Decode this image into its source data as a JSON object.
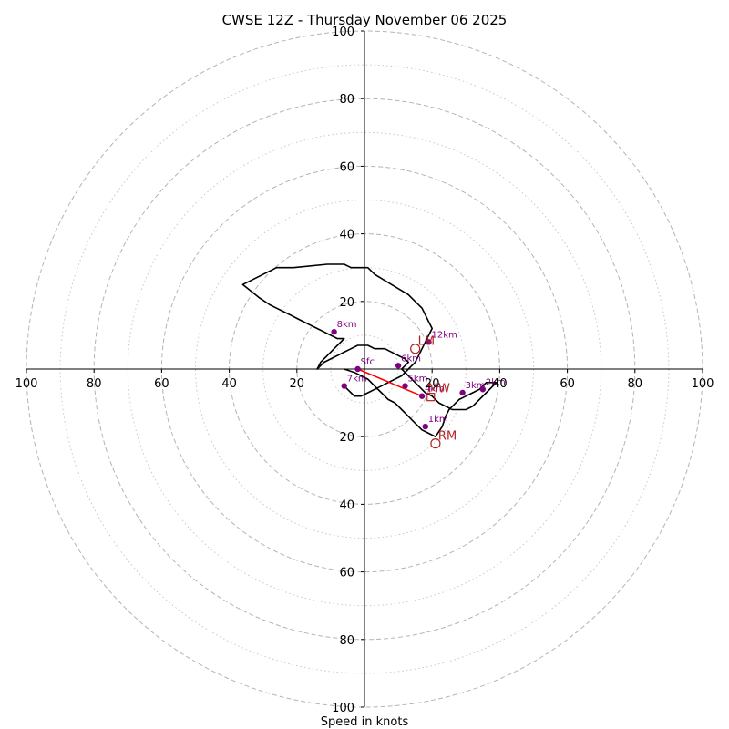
{
  "chart_data": {
    "type": "line",
    "title": "CWSE 12Z - Thursday November 06 2025",
    "xlabel": "Speed in knots",
    "ylabel": "",
    "xlim": [
      -100,
      100
    ],
    "ylim": [
      -100,
      100
    ],
    "rings_dashed": [
      20,
      40,
      60,
      80,
      100
    ],
    "rings_dotted": [
      10,
      30,
      50,
      70,
      90
    ],
    "tick_labels_x": [
      "100",
      "80",
      "60",
      "40",
      "20",
      "20",
      "40",
      "60",
      "80",
      "100"
    ],
    "tick_labels_y": [
      "100",
      "80",
      "60",
      "40",
      "20",
      "20",
      "40",
      "60",
      "80",
      "100"
    ],
    "grid": true,
    "hodograph": {
      "u": [
        -6,
        -3,
        -1,
        1,
        3,
        5,
        7,
        9,
        11,
        13,
        15,
        17,
        19,
        21,
        23,
        24,
        25,
        26,
        27,
        28,
        30,
        32,
        34,
        35,
        36,
        37,
        38,
        39,
        38,
        36,
        34,
        32,
        30,
        28,
        26,
        24,
        22,
        21,
        20,
        18,
        17,
        16,
        15,
        14,
        13,
        12,
        11,
        12,
        13,
        12,
        10,
        8,
        6,
        3,
        1,
        0,
        -2,
        -4,
        -6,
        -8,
        -10,
        -12,
        -14,
        -13,
        -11,
        -9,
        -8,
        -7,
        -6,
        -8,
        -10,
        -12,
        -14,
        -16,
        -18,
        -20,
        -22,
        -24,
        -26,
        -28,
        -31,
        -36,
        -26,
        -21,
        -11,
        -6,
        -4,
        1,
        3,
        8,
        13,
        15,
        17,
        18,
        19,
        20,
        19,
        18,
        17,
        16,
        15,
        14,
        13,
        12,
        11,
        9,
        7,
        5,
        3,
        1,
        -1,
        -3,
        -4,
        -5,
        -6
      ],
      "v": [
        0,
        -1,
        -2,
        -3,
        -5,
        -7,
        -9,
        -10,
        -12,
        -14,
        -16,
        -18,
        -19,
        -20,
        -17,
        -14,
        -12,
        -11,
        -10,
        -9,
        -8,
        -7,
        -6,
        -5,
        -4,
        -4,
        -4,
        -4,
        -5,
        -7,
        -9,
        -11,
        -12,
        -12,
        -12,
        -11,
        -10,
        -9,
        -8,
        -7,
        -6,
        -5,
        -4,
        -3,
        -2,
        -1,
        0,
        1,
        2,
        3,
        4,
        5,
        6,
        6,
        7,
        7,
        7,
        6,
        5,
        4,
        3,
        2,
        0,
        2,
        4,
        6,
        7,
        8,
        9,
        9,
        10,
        11,
        12,
        13,
        14,
        15,
        16,
        17,
        18,
        19,
        21,
        25,
        30,
        30,
        31,
        31,
        30,
        30,
        28,
        25,
        22,
        20,
        18,
        16,
        14,
        12,
        10,
        8,
        6,
        4,
        2,
        1,
        0,
        -1,
        -2,
        -3,
        -4,
        -5,
        -6,
        -7,
        -8,
        -8,
        -7,
        -6,
        -5
      ],
      "color": "#000000"
    },
    "levels": [
      {
        "label": "Sfc",
        "u": -2,
        "v": 0
      },
      {
        "label": "1km",
        "u": 18,
        "v": -17
      },
      {
        "label": "2km",
        "u": 35,
        "v": -6
      },
      {
        "label": "3km",
        "u": 29,
        "v": -7
      },
      {
        "label": "4km",
        "u": 17,
        "v": -8
      },
      {
        "label": "5km",
        "u": 12,
        "v": -5
      },
      {
        "label": "6km",
        "u": 10,
        "v": 1
      },
      {
        "label": "7km",
        "u": -6,
        "v": -5
      },
      {
        "label": "8km",
        "u": -9,
        "v": 11
      },
      {
        "label": "12km",
        "u": 19,
        "v": 8
      }
    ],
    "level_color": "#800080",
    "mean_wind_line": {
      "from": [
        -2,
        0
      ],
      "to": [
        17,
        -8
      ],
      "color": "#ff0000"
    },
    "storm_motion": [
      {
        "label": "LM",
        "u": 15,
        "v": 6,
        "marker": "circle"
      },
      {
        "label": "RM",
        "u": 21,
        "v": -22,
        "marker": "circle"
      },
      {
        "label": "MW",
        "u": 18,
        "v": -8,
        "marker": "square"
      }
    ],
    "storm_motion_color": "#b22222"
  }
}
